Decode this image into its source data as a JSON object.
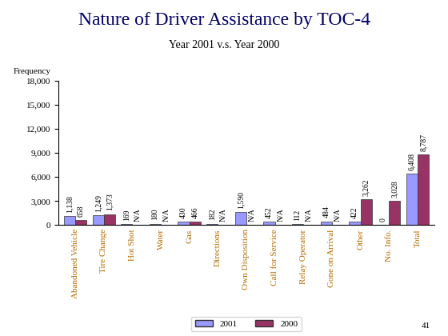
{
  "chart_data": {
    "type": "bar",
    "title": "Nature of Driver Assistance by TOC-4",
    "subtitle": "Year 2001 v.s. Year 2000",
    "y_label": "Frequency",
    "page_number": "41",
    "categories": [
      "Abandoned Vehicle",
      "Tire Change",
      "Hot Shot",
      "Water",
      "Gas",
      "Directions",
      "Own Disposition",
      "Call for Service",
      "Relay Operator",
      "Gone on Arrival",
      "Other",
      "No. Info.",
      "Total"
    ],
    "series": [
      {
        "name": "2001",
        "color": "#9999ff",
        "values": [
          1138,
          1249,
          169,
          180,
          430,
          182,
          1590,
          452,
          112,
          484,
          422,
          0,
          6408
        ],
        "value_labels": [
          "1,138",
          "1,249",
          "169",
          "180",
          "430",
          "182",
          "1,590",
          "452",
          "112",
          "484",
          "422",
          "0",
          "6,408"
        ]
      },
      {
        "name": "2000",
        "color": "#993366",
        "values": [
          658,
          1373,
          null,
          null,
          466,
          null,
          null,
          null,
          null,
          null,
          3262,
          3028,
          8787
        ],
        "value_labels": [
          "658",
          "1,373",
          "N/A",
          "N/A",
          "466",
          "N/A",
          "N/A",
          "N/A",
          "N/A",
          "N/A",
          "3,262",
          "3,028",
          "8,787"
        ]
      }
    ],
    "ylim": [
      0,
      18000
    ],
    "yticks": [
      0,
      {
        "value": 3000,
        "label": "3,000"
      },
      {
        "value": 6000,
        "label": "6,000"
      },
      {
        "value": 9000,
        "label": "9,000"
      },
      {
        "value": 12000,
        "label": "12,000"
      },
      {
        "value": 15000,
        "label": "15,000"
      },
      {
        "value": 18000,
        "label": "18,000"
      }
    ],
    "grid": false,
    "legend": "lower center",
    "data_labels": true
  }
}
